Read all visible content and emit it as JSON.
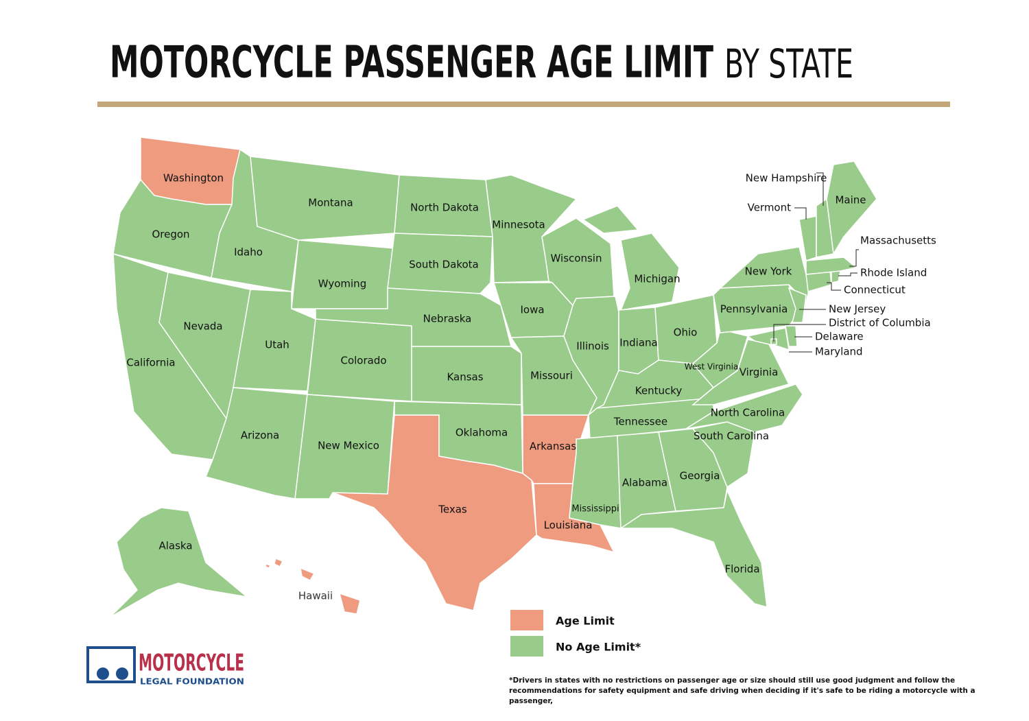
{
  "title": {
    "main": "MOTORCYCLE PASSENGER AGE LIMIT",
    "suffix": "BY STATE"
  },
  "map": {
    "groups": [
      {
        "label": "Age Limit",
        "color": "#ee9b7f",
        "states": [
          "Washington",
          "Texas",
          "Arkansas",
          "Louisiana",
          "Hawaii"
        ]
      },
      {
        "label": "No Age Limit*",
        "color": "#99cb8a",
        "states": [
          "Oregon",
          "California",
          "Nevada",
          "Idaho",
          "Montana",
          "Wyoming",
          "Utah",
          "Arizona",
          "Colorado",
          "New Mexico",
          "North Dakota",
          "South Dakota",
          "Nebraska",
          "Kansas",
          "Oklahoma",
          "Minnesota",
          "Iowa",
          "Missouri",
          "Wisconsin",
          "Illinois",
          "Michigan",
          "Indiana",
          "Ohio",
          "Kentucky",
          "Tennessee",
          "Mississippi",
          "Alabama",
          "Georgia",
          "Florida",
          "South Carolina",
          "North Carolina",
          "Virginia",
          "West Virginia",
          "Pennsylvania",
          "New York",
          "New Jersey",
          "Delaware",
          "Maryland",
          "District of Columbia",
          "Connecticut",
          "Rhode Island",
          "Massachusetts",
          "Vermont",
          "New Hampshire",
          "Maine",
          "Alaska"
        ]
      }
    ]
  },
  "footnote": "*Drivers in states with no restrictions on passenger age or size should still use good judgment and follow the recommendations for safety equipment and safe driving when deciding if it's safe to be riding a motorcycle with a passenger,",
  "logo": {
    "name": "MOTORCYCLE",
    "tagline": "LEGAL FOUNDATION"
  }
}
